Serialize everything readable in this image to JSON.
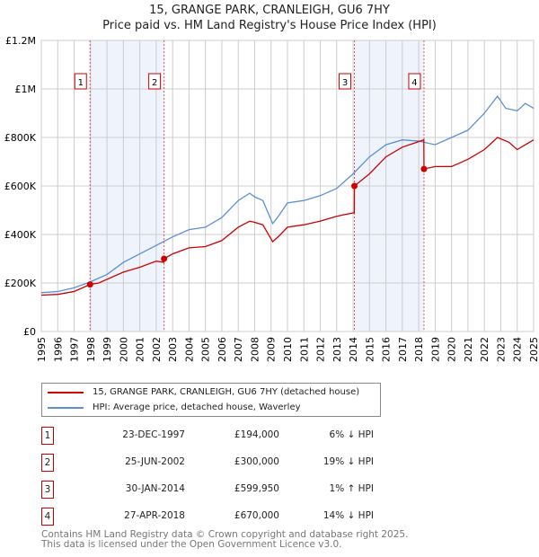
{
  "title": "15, GRANGE PARK, CRANLEIGH, GU6 7HY",
  "subtitle": "Price paid vs. HM Land Registry's House Price Index (HPI)",
  "chart_data": {
    "type": "line",
    "xlim": [
      1995,
      2025
    ],
    "ylim": [
      0,
      1200000
    ],
    "x_ticks": [
      "1995",
      "1996",
      "1997",
      "1998",
      "1999",
      "2000",
      "2001",
      "2002",
      "2003",
      "2004",
      "2005",
      "2006",
      "2007",
      "2008",
      "2009",
      "2010",
      "2011",
      "2012",
      "2013",
      "2014",
      "2015",
      "2016",
      "2017",
      "2018",
      "2019",
      "2020",
      "2021",
      "2022",
      "2023",
      "2024",
      "2025"
    ],
    "y_ticks": [
      {
        "v": 0,
        "label": "£0"
      },
      {
        "v": 200000,
        "label": "£200K"
      },
      {
        "v": 400000,
        "label": "£400K"
      },
      {
        "v": 600000,
        "label": "£600K"
      },
      {
        "v": 800000,
        "label": "£800K"
      },
      {
        "v": 1000000,
        "label": "£1M"
      },
      {
        "v": 1200000,
        "label": "£1.2M"
      }
    ],
    "grid": true,
    "series": [
      {
        "name": "15, GRANGE PARK, CRANLEIGH, GU6 7HY (detached house)",
        "color": "#cc0000",
        "x": [
          1995,
          1996,
          1997,
          1997.97,
          1998.5,
          1999,
          2000,
          2001,
          2002,
          2002.47,
          2002.48,
          2003,
          2004,
          2005,
          2006,
          2007,
          2007.7,
          2008,
          2008.5,
          2009.1,
          2009.5,
          2010,
          2011,
          2012,
          2013,
          2014.07,
          2014.08,
          2015,
          2016,
          2017,
          2018.31,
          2018.32,
          2019,
          2020,
          2021,
          2022,
          2022.8,
          2023.5,
          2024,
          2024.5,
          2025
        ],
        "y": [
          150000,
          153000,
          165000,
          194000,
          200000,
          215000,
          245000,
          265000,
          290000,
          285000,
          300000,
          320000,
          345000,
          350000,
          375000,
          430000,
          455000,
          450000,
          440000,
          370000,
          395000,
          430000,
          440000,
          455000,
          475000,
          490000,
          599950,
          650000,
          720000,
          760000,
          790000,
          670000,
          680000,
          680000,
          710000,
          750000,
          800000,
          780000,
          750000,
          770000,
          790000
        ]
      },
      {
        "name": "HPI: Average price, detached house, Waverley",
        "color": "#5b8fd6",
        "x": [
          1995,
          1996,
          1997,
          1998,
          1999,
          2000,
          2001,
          2002,
          2003,
          2004,
          2005,
          2006,
          2007,
          2007.7,
          2008,
          2008.5,
          2009.1,
          2009.5,
          2010,
          2011,
          2012,
          2013,
          2014,
          2015,
          2016,
          2017,
          2018,
          2019,
          2020,
          2021,
          2022,
          2022.8,
          2023.3,
          2024,
          2024.5,
          2025
        ],
        "y": [
          160000,
          165000,
          180000,
          205000,
          235000,
          285000,
          320000,
          355000,
          390000,
          420000,
          430000,
          470000,
          540000,
          570000,
          555000,
          540000,
          445000,
          480000,
          530000,
          540000,
          560000,
          590000,
          650000,
          720000,
          770000,
          790000,
          785000,
          770000,
          800000,
          830000,
          900000,
          970000,
          920000,
          910000,
          940000,
          920000
        ]
      }
    ],
    "sales": [
      {
        "id": "1",
        "x": 1997.97,
        "y": 194000,
        "date": "23-DEC-1997",
        "price": "£194,000",
        "hpi": "6% ↓ HPI"
      },
      {
        "id": "2",
        "x": 2002.48,
        "y": 300000,
        "date": "25-JUN-2002",
        "price": "£300,000",
        "hpi": "19% ↓ HPI"
      },
      {
        "id": "3",
        "x": 2014.08,
        "y": 599950,
        "date": "30-JAN-2014",
        "price": "£599,950",
        "hpi": "1% ↑ HPI"
      },
      {
        "id": "4",
        "x": 2018.32,
        "y": 670000,
        "date": "27-APR-2018",
        "price": "£670,000",
        "hpi": "14% ↓ HPI"
      }
    ],
    "shaded_ranges": [
      [
        1997.97,
        2002.48
      ],
      [
        2014.08,
        2018.32
      ]
    ]
  },
  "footer": [
    "Contains HM Land Registry data © Crown copyright and database right 2025.",
    "This data is licensed under the Open Government Licence v3.0."
  ]
}
